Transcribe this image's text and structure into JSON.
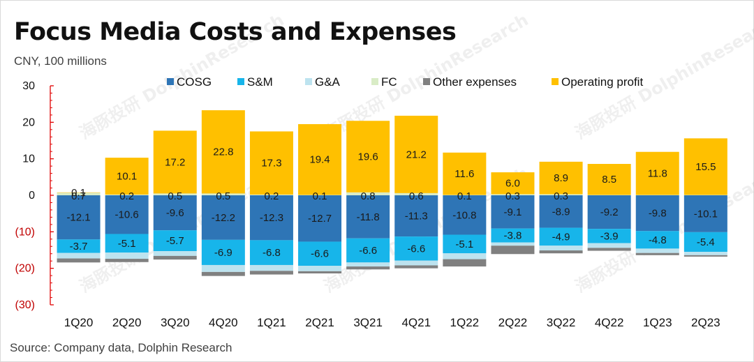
{
  "header": {
    "title": "Focus Media Costs and Expenses",
    "unit": "CNY, 100 millions"
  },
  "footer": {
    "source": "Source: Company data, Dolphin Research"
  },
  "watermark": {
    "cn": "海豚投研",
    "en": "DolphinResearch"
  },
  "chart_data": {
    "type": "bar",
    "stacked": true,
    "title": "Focus Media Costs and Expenses",
    "ylabel": "CNY, 100 millions",
    "xlabel": "",
    "ylim": [
      -30,
      30
    ],
    "yticks": [
      30,
      20,
      10,
      0,
      -10,
      -20,
      -30
    ],
    "ytick_labels": [
      "30",
      "20",
      "10",
      "0",
      "(10)",
      "(20)",
      "(30)"
    ],
    "legend_position": "top",
    "categories": [
      "1Q20",
      "2Q20",
      "3Q20",
      "4Q20",
      "1Q21",
      "2Q21",
      "3Q21",
      "4Q21",
      "1Q22",
      "2Q22",
      "3Q22",
      "4Q22",
      "1Q23",
      "2Q23"
    ],
    "series": [
      {
        "name": "COSG",
        "color": "#2e75b6",
        "values": [
          -12.1,
          -10.6,
          -9.6,
          -12.2,
          -12.3,
          -12.7,
          -11.8,
          -11.3,
          -10.8,
          -9.1,
          -8.9,
          -9.2,
          -9.8,
          -10.1
        ],
        "labels": [
          "-12.1",
          "-10.6",
          "-9.6",
          "-12.2",
          "-12.3",
          "-12.7",
          "-11.8",
          "-11.3",
          "-10.8",
          "-9.1",
          "-8.9",
          "-9.2",
          "-9.8",
          "-10.1"
        ]
      },
      {
        "name": "S&M",
        "color": "#17b5ea",
        "values": [
          -3.7,
          -5.1,
          -5.7,
          -6.9,
          -6.8,
          -6.6,
          -6.6,
          -6.6,
          -5.1,
          -3.8,
          -4.9,
          -3.9,
          -4.8,
          -5.4
        ],
        "labels": [
          "-3.7",
          "-5.1",
          "-5.7",
          "-6.9",
          "-6.8",
          "-6.6",
          "-6.6",
          "-6.6",
          "-5.1",
          "-3.8",
          "-4.9",
          "-3.9",
          "-4.8",
          "-5.4"
        ]
      },
      {
        "name": "G&A",
        "color": "#bde3ef",
        "values": [
          -1.5,
          -1.7,
          -1.3,
          -1.9,
          -1.6,
          -1.5,
          -1.1,
          -1.3,
          -1.6,
          -0.9,
          -1.3,
          -1.3,
          -1.2,
          -0.9
        ]
      },
      {
        "name": "FC",
        "color": "#d9ecc6",
        "values": [
          0.7,
          0.2,
          0.5,
          0.5,
          0.2,
          0.1,
          0.8,
          0.6,
          0.1,
          0.3,
          0.3,
          0.1,
          0.1,
          0.1
        ],
        "labels": [
          "0.7",
          "0.2",
          "0.5",
          "0.5",
          "0.2",
          "0.1",
          "0.8",
          "0.6",
          "0.1",
          "0.3",
          "0.3",
          "",
          "",
          ""
        ]
      },
      {
        "name": "Other expenses",
        "color": "#808080",
        "values": [
          -1.1,
          -0.9,
          -1.0,
          -1.1,
          -1.0,
          -0.6,
          -0.8,
          -0.8,
          -2.0,
          -2.3,
          -0.8,
          -0.8,
          -0.6,
          -0.4
        ]
      },
      {
        "name": "Operating profit",
        "color": "#ffc000",
        "values": [
          0.1,
          10.1,
          17.2,
          22.8,
          17.3,
          19.4,
          19.6,
          21.2,
          11.6,
          6.0,
          8.9,
          8.5,
          11.8,
          15.5
        ],
        "labels": [
          "0.1",
          "10.1",
          "17.2",
          "22.8",
          "17.3",
          "19.4",
          "19.6",
          "21.2",
          "11.6",
          "6.0",
          "8.9",
          "8.5",
          "11.8",
          "15.5"
        ]
      }
    ]
  }
}
